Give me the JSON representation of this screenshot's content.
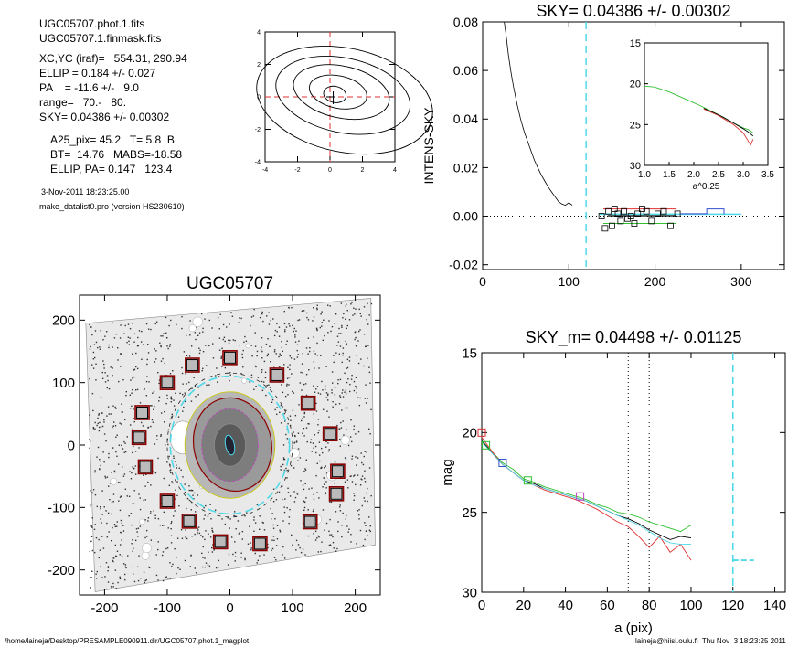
{
  "header": {
    "file1": "UGC05707.phot.1.fits",
    "file2": "UGC05707.1.finmask.fits",
    "xcyc": "XC,YC (iraf)=   554.31, 290.94",
    "ellip": "ELLIP = 0.184 +/- 0.027",
    "pa": "PA    = -11.6 +/-   9.0",
    "range": "range=   70.-   80.",
    "sky": "SKY= 0.04386 +/- 0.00302",
    "a25": "A25_pix= 45.2   T= 5.8  B",
    "bt": "BT=  14.76   MABS=-18.58",
    "ellippa": "ELLIP, PA= 0.147   123.4",
    "date": "3-Nov-2011 18:23:25.00",
    "program": "make_datalist0.pro (version HS230610)"
  },
  "footer": {
    "path": "/home/laineja/Desktop/PRESAMPLE090911.dir/UGC05707.phot.1_magplot",
    "user": "laineja@hiisi.oulu.fi  Thu Nov  3 18:23:25 2011"
  },
  "colors": {
    "cyan": "#4fd8e8",
    "red": "#e03030",
    "green": "#30c030",
    "blue": "#3050d0",
    "magenta": "#c040c0",
    "darkred": "#8b0000",
    "gray": "#555555"
  },
  "chart_data": [
    {
      "id": "contour",
      "type": "contour",
      "xlim": [
        -4,
        4
      ],
      "ylim": [
        -4,
        4
      ],
      "xticks": [
        -4,
        -2,
        0,
        2,
        4
      ],
      "yticks": [
        -4,
        -2,
        0,
        2,
        4
      ],
      "center": [
        0,
        0
      ]
    },
    {
      "id": "sky",
      "type": "line",
      "title": "SKY= 0.04386 +/- 0.00302",
      "ylabel": "INTENS-SKY",
      "xlim": [
        0,
        350
      ],
      "ylim": [
        -0.022,
        0.08
      ],
      "xticks": [
        0,
        100,
        200,
        300
      ],
      "yticks": [
        -0.02,
        0.0,
        0.02,
        0.04,
        0.06,
        0.08
      ],
      "ytick_labels": [
        "-0.02",
        "0.00",
        "0.02",
        "0.04",
        "0.06",
        "0.08"
      ],
      "vline_x": 120,
      "profile": [
        [
          25,
          0.08
        ],
        [
          27,
          0.075
        ],
        [
          30,
          0.066
        ],
        [
          33,
          0.059
        ],
        [
          36,
          0.053
        ],
        [
          40,
          0.046
        ],
        [
          44,
          0.04
        ],
        [
          48,
          0.035
        ],
        [
          52,
          0.031
        ],
        [
          56,
          0.027
        ],
        [
          60,
          0.023
        ],
        [
          64,
          0.02
        ],
        [
          68,
          0.017
        ],
        [
          72,
          0.0145
        ],
        [
          76,
          0.012
        ],
        [
          80,
          0.01
        ],
        [
          84,
          0.008
        ],
        [
          88,
          0.006
        ],
        [
          92,
          0.005
        ],
        [
          96,
          0.0045
        ],
        [
          100,
          0.0055
        ],
        [
          104,
          0.0045
        ]
      ],
      "sky_points": [
        [
          138,
          0.0
        ],
        [
          142,
          -0.005
        ],
        [
          146,
          0.002
        ],
        [
          150,
          -0.004
        ],
        [
          153,
          0.003
        ],
        [
          157,
          0.001
        ],
        [
          160,
          -0.002
        ],
        [
          164,
          0.002
        ],
        [
          168,
          -0.001
        ],
        [
          172,
          0.0
        ],
        [
          176,
          -0.003
        ],
        [
          180,
          0.001
        ],
        [
          185,
          0.003
        ],
        [
          190,
          0.002
        ],
        [
          196,
          -0.002
        ],
        [
          203,
          0.001
        ],
        [
          210,
          0.002
        ],
        [
          218,
          -0.004
        ],
        [
          226,
          0.001
        ]
      ],
      "inset": {
        "type": "line",
        "xlabel": "a^0.25",
        "xlim": [
          1.0,
          3.5
        ],
        "ylim": [
          15,
          30
        ],
        "xticks": [
          1.0,
          1.5,
          2.0,
          2.5,
          3.0,
          3.5
        ],
        "xtick_labels": [
          "1.0",
          "1.5",
          "2.0",
          "2.5",
          "3.0",
          "3.5"
        ],
        "yticks": [
          15,
          20,
          25,
          30
        ],
        "series": [
          {
            "color": "green",
            "x": [
              1.0,
              1.2,
              1.5,
              1.8,
              2.1,
              2.4,
              2.6,
              2.8,
              3.0,
              3.1,
              3.2
            ],
            "y": [
              20.3,
              20.4,
              21.0,
              21.8,
              22.6,
              23.5,
              24.1,
              24.8,
              25.4,
              25.6,
              26.0
            ]
          },
          {
            "color": "black",
            "x": [
              2.2,
              2.5,
              2.8,
              3.0,
              3.1,
              3.2
            ],
            "y": [
              23.0,
              23.8,
              24.8,
              25.5,
              25.9,
              26.4
            ]
          },
          {
            "color": "red",
            "x": [
              2.2,
              2.5,
              2.8,
              3.0,
              3.1,
              3.15,
              3.2
            ],
            "y": [
              23.1,
              23.9,
              25.0,
              26.0,
              27.0,
              27.5,
              26.8
            ]
          }
        ]
      }
    },
    {
      "id": "image",
      "type": "image",
      "title": "UGC05707",
      "xlim": [
        -240,
        240
      ],
      "ylim": [
        -240,
        240
      ],
      "xticks": [
        -200,
        -100,
        0,
        100,
        200
      ],
      "yticks": [
        -200,
        -100,
        0,
        100,
        200
      ],
      "sky_boxes": [
        [
          0,
          140
        ],
        [
          -60,
          128
        ],
        [
          75,
          112
        ],
        [
          -100,
          100
        ],
        [
          125,
          67
        ],
        [
          -140,
          52
        ],
        [
          160,
          18
        ],
        [
          -145,
          12
        ],
        [
          -135,
          -35
        ],
        [
          172,
          -42
        ],
        [
          -100,
          -90
        ],
        [
          170,
          -78
        ],
        [
          -65,
          -122
        ],
        [
          128,
          -123
        ],
        [
          -15,
          -155
        ],
        [
          48,
          -158
        ]
      ]
    },
    {
      "id": "mag",
      "type": "line",
      "title": "SKY_m=  0.04498 +/- 0.01125",
      "xlabel": "a (pix)",
      "ylabel": "mag",
      "xlim": [
        0,
        145
      ],
      "ylim": [
        30,
        15
      ],
      "xticks": [
        0,
        20,
        40,
        60,
        80,
        100,
        120,
        140
      ],
      "yticks": [
        15,
        20,
        25,
        30
      ],
      "dotted_x": [
        70,
        80
      ],
      "dashed_x": 120,
      "series": [
        {
          "color": "green",
          "x": [
            0,
            5,
            10,
            15,
            20,
            25,
            30,
            35,
            40,
            45,
            50,
            55,
            60,
            65,
            70,
            75,
            80,
            85,
            90,
            95,
            100
          ],
          "y": [
            20.5,
            21.2,
            21.9,
            22.3,
            22.9,
            23.1,
            23.4,
            23.6,
            23.8,
            24.0,
            24.2,
            24.5,
            24.7,
            25.0,
            25.1,
            25.3,
            25.6,
            25.8,
            26.0,
            26.2,
            25.8
          ]
        },
        {
          "color": "black",
          "x": [
            0,
            5,
            10,
            15,
            20,
            25,
            30,
            35,
            40,
            45,
            50,
            55,
            60,
            65,
            70,
            75,
            80,
            85,
            90,
            95,
            100
          ],
          "y": [
            20.5,
            21.3,
            22.0,
            22.5,
            23.0,
            23.2,
            23.5,
            23.7,
            23.9,
            24.1,
            24.3,
            24.6,
            24.9,
            25.2,
            25.4,
            25.7,
            26.1,
            26.4,
            26.7,
            26.5,
            26.6
          ]
        },
        {
          "color": "red",
          "x": [
            0,
            5,
            10,
            15,
            20,
            25,
            30,
            35,
            40,
            45,
            50,
            55,
            60,
            65,
            70,
            75,
            80,
            85,
            90,
            95,
            100
          ],
          "y": [
            20.3,
            21.2,
            22.0,
            22.5,
            23.0,
            23.3,
            23.6,
            23.8,
            24.0,
            24.2,
            24.5,
            24.8,
            25.2,
            25.6,
            25.9,
            26.5,
            27.2,
            26.5,
            27.5,
            27.0,
            28.0
          ]
        },
        {
          "color": "cyan",
          "x": [
            0,
            5,
            10,
            15,
            20,
            25,
            30,
            35,
            40,
            45,
            50,
            55,
            60,
            65,
            70,
            75,
            80,
            85,
            90,
            95,
            100
          ],
          "y": [
            20.6,
            21.3,
            22.0,
            22.5,
            23.0,
            23.3,
            23.5,
            23.7,
            23.9,
            24.1,
            24.3,
            24.6,
            24.9,
            25.2,
            25.5,
            25.8,
            26.2,
            26.6,
            26.9,
            27.0,
            27.0
          ]
        }
      ],
      "markers": [
        {
          "x": 0,
          "y": 20.0,
          "color": "red"
        },
        {
          "x": 10,
          "y": 21.9,
          "color": "blue"
        },
        {
          "x": 22,
          "y": 23.0,
          "color": "green"
        },
        {
          "x": 2,
          "y": 20.8,
          "color": "green"
        },
        {
          "x": 47,
          "y": 24.0,
          "color": "magenta"
        }
      ],
      "sky_mark": {
        "x1": 120,
        "x2": 130,
        "y": 28.0
      }
    }
  ]
}
